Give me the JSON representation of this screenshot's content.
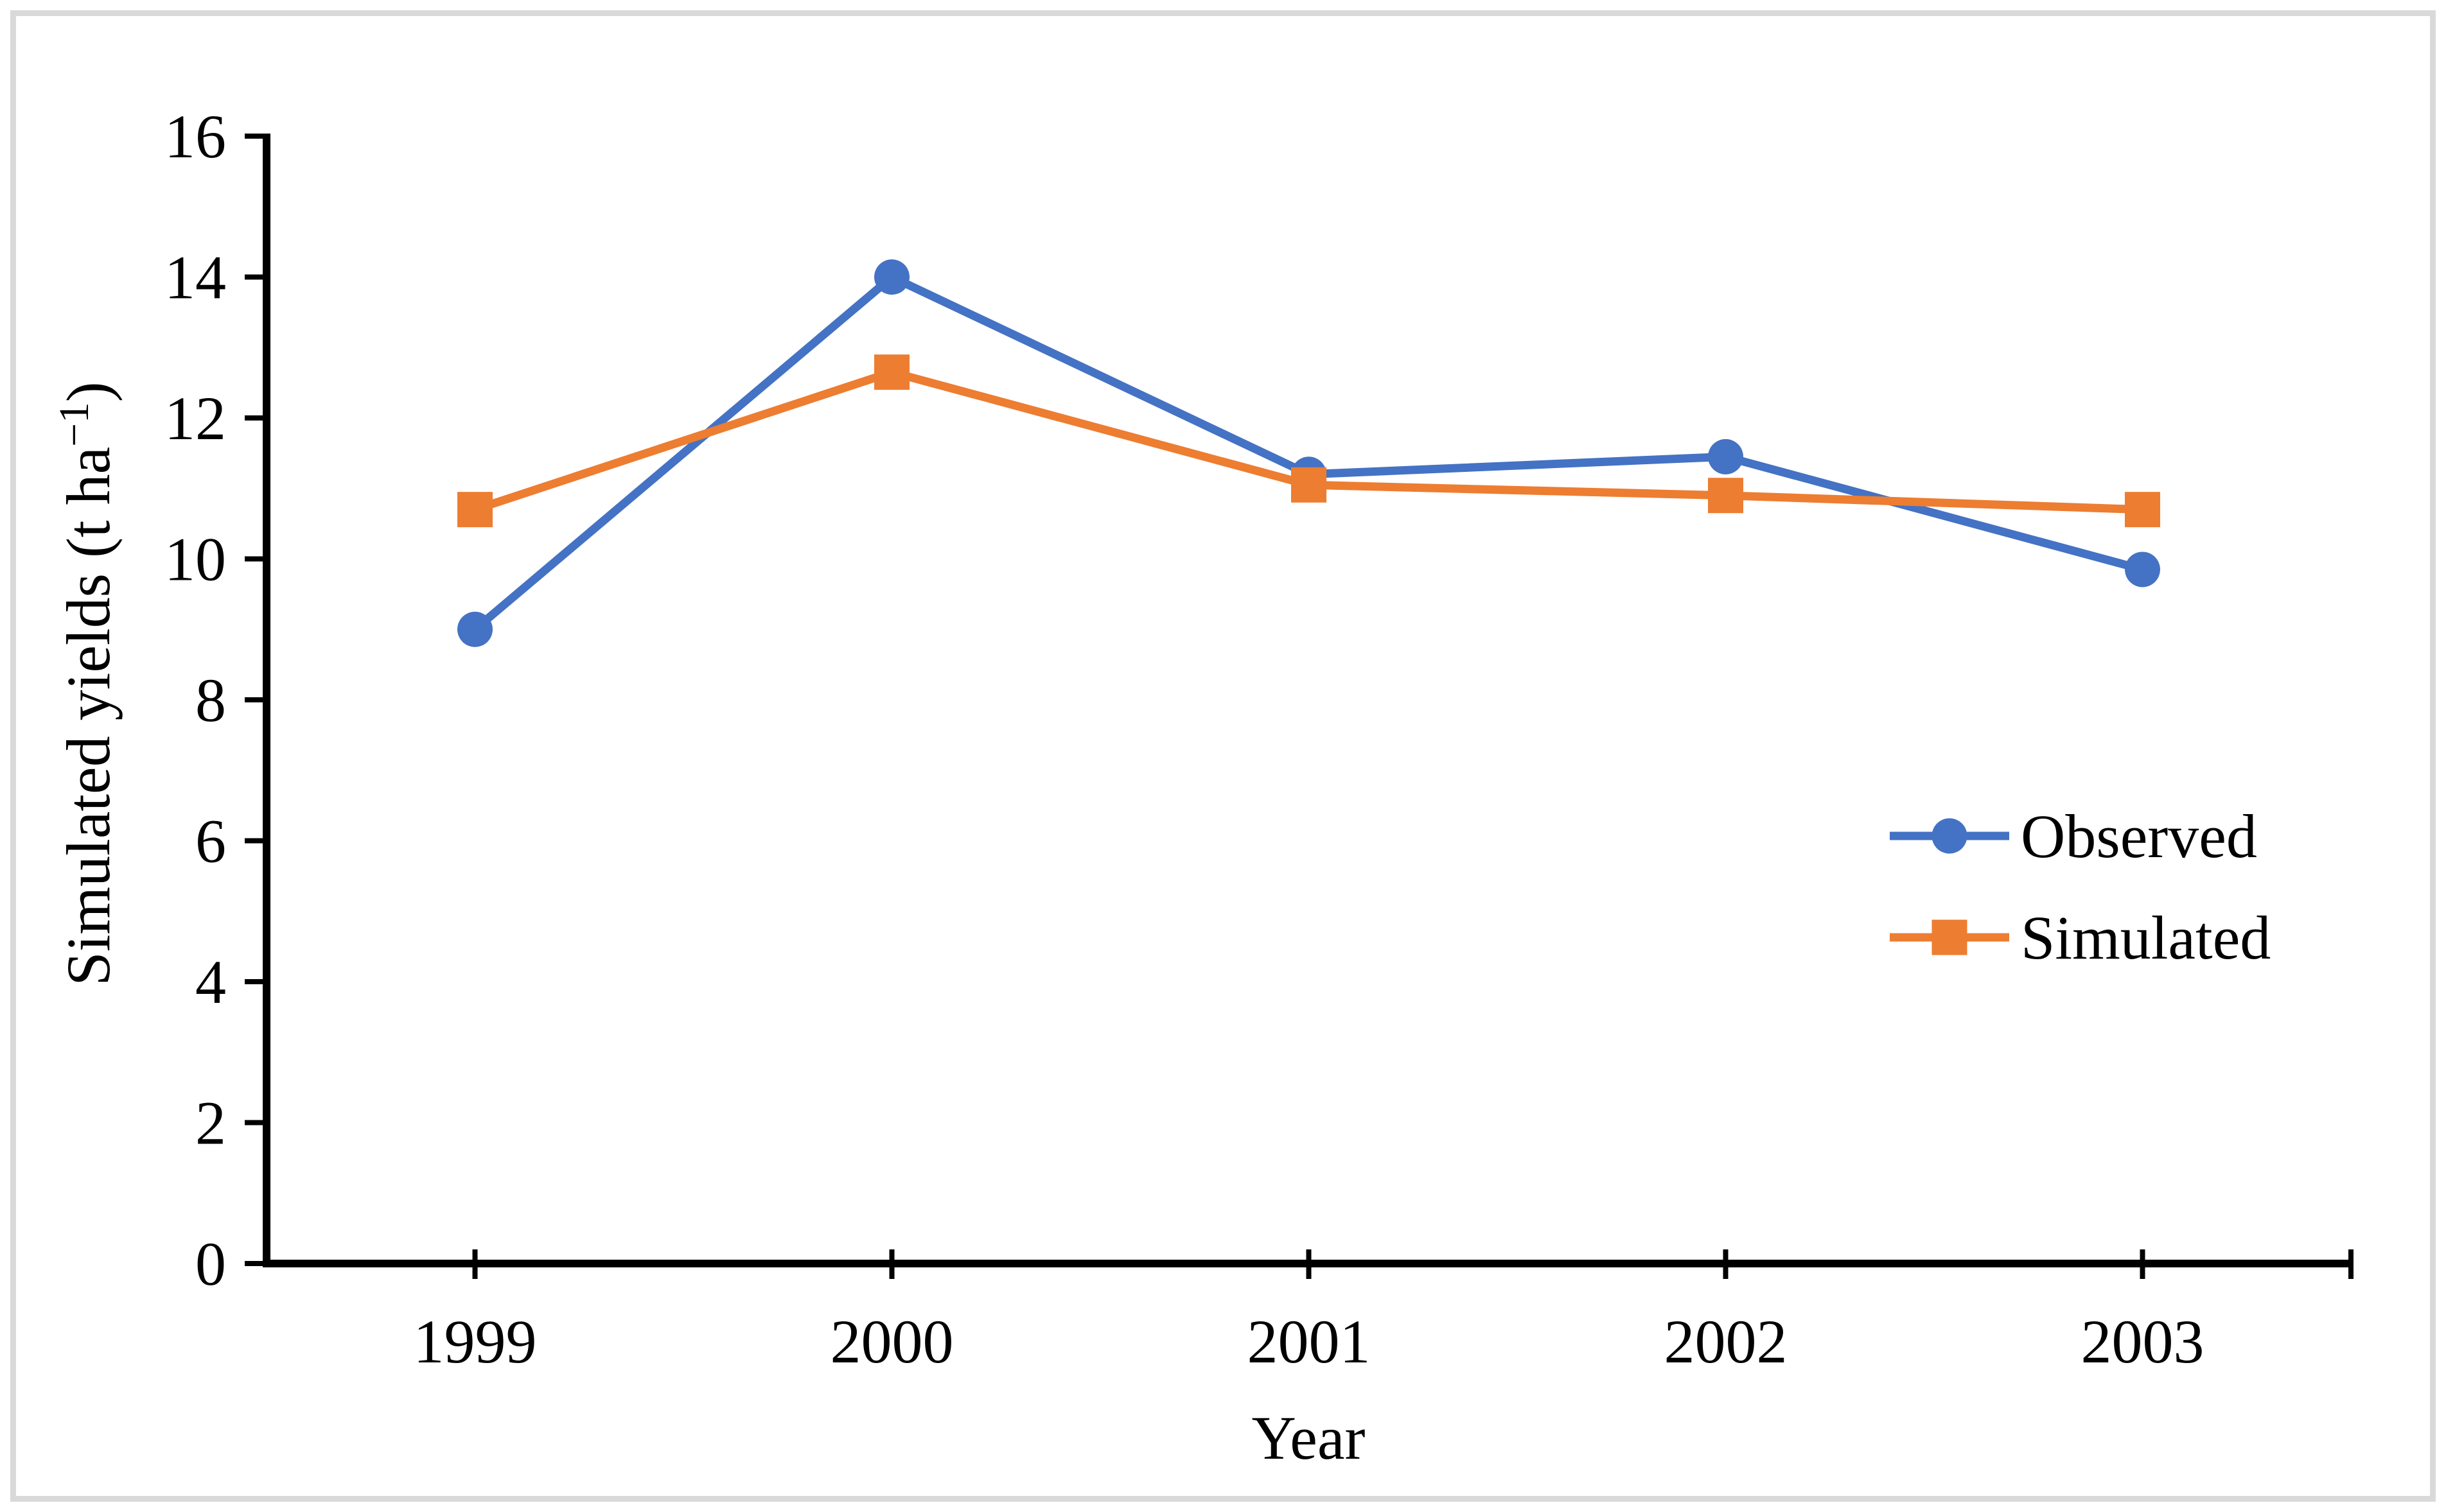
{
  "chart_data": {
    "type": "line",
    "title": "",
    "categories": [
      "1999",
      "2000",
      "2001",
      "2002",
      "2003"
    ],
    "series": [
      {
        "name": "Observed",
        "color": "#4472C4",
        "marker": "circle",
        "values": [
          9.0,
          14.0,
          11.2,
          11.45,
          9.85
        ]
      },
      {
        "name": "Simulated",
        "color": "#ED7D31",
        "marker": "square",
        "values": [
          10.7,
          12.65,
          11.05,
          10.9,
          10.7
        ]
      }
    ],
    "xlabel": "Year",
    "ylabel": "Simulated yields (t ha−1)",
    "ylabel_base": "Simulated yields (t ha",
    "ylabel_sup": "−1",
    "ylabel_close": ")",
    "ylim": [
      0,
      16
    ],
    "yticks": [
      0,
      2,
      4,
      6,
      8,
      10,
      12,
      14,
      16
    ],
    "grid": false,
    "legend_position": "middle-right"
  },
  "colors": {
    "axis": "#000000",
    "text": "#000000",
    "frame": "#D9D9D9",
    "background": "#FFFFFF"
  }
}
